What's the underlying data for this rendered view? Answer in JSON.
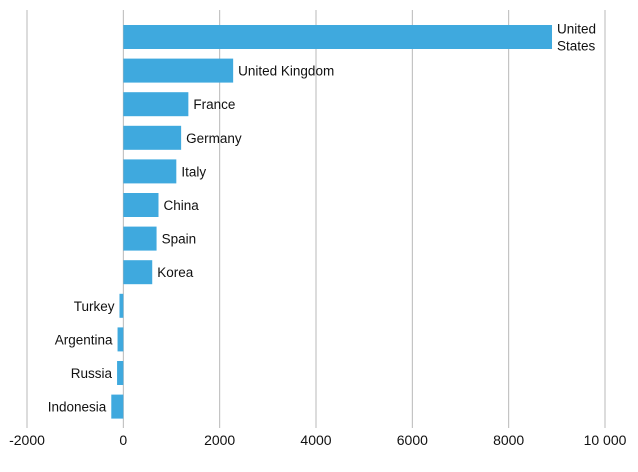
{
  "chart_data": {
    "type": "bar",
    "orientation": "horizontal",
    "title": "",
    "xlabel": "",
    "ylabel": "",
    "xlim": [
      -2000,
      10000
    ],
    "x_ticks": [
      -2000,
      0,
      2000,
      4000,
      6000,
      8000,
      10000
    ],
    "x_tick_labels": [
      "-2000",
      "0",
      "2000",
      "4000",
      "6000",
      "8000",
      "10 000"
    ],
    "grid": true,
    "legend": "none",
    "bar_color": "#3fa9de",
    "categories": [
      "United States",
      "United Kingdom",
      "France",
      "Germany",
      "Italy",
      "China",
      "Spain",
      "Korea",
      "Turkey",
      "Argentina",
      "Russia",
      "Indonesia"
    ],
    "category_label_lines": [
      [
        "United",
        "States"
      ],
      [
        "United Kingdom"
      ],
      [
        "France"
      ],
      [
        "Germany"
      ],
      [
        "Italy"
      ],
      [
        "China"
      ],
      [
        "Spain"
      ],
      [
        "Korea"
      ],
      [
        "Turkey"
      ],
      [
        "Argentina"
      ],
      [
        "Russia"
      ],
      [
        "Indonesia"
      ]
    ],
    "values": [
      8900,
      2280,
      1350,
      1200,
      1100,
      730,
      690,
      600,
      -80,
      -120,
      -130,
      -250
    ]
  }
}
